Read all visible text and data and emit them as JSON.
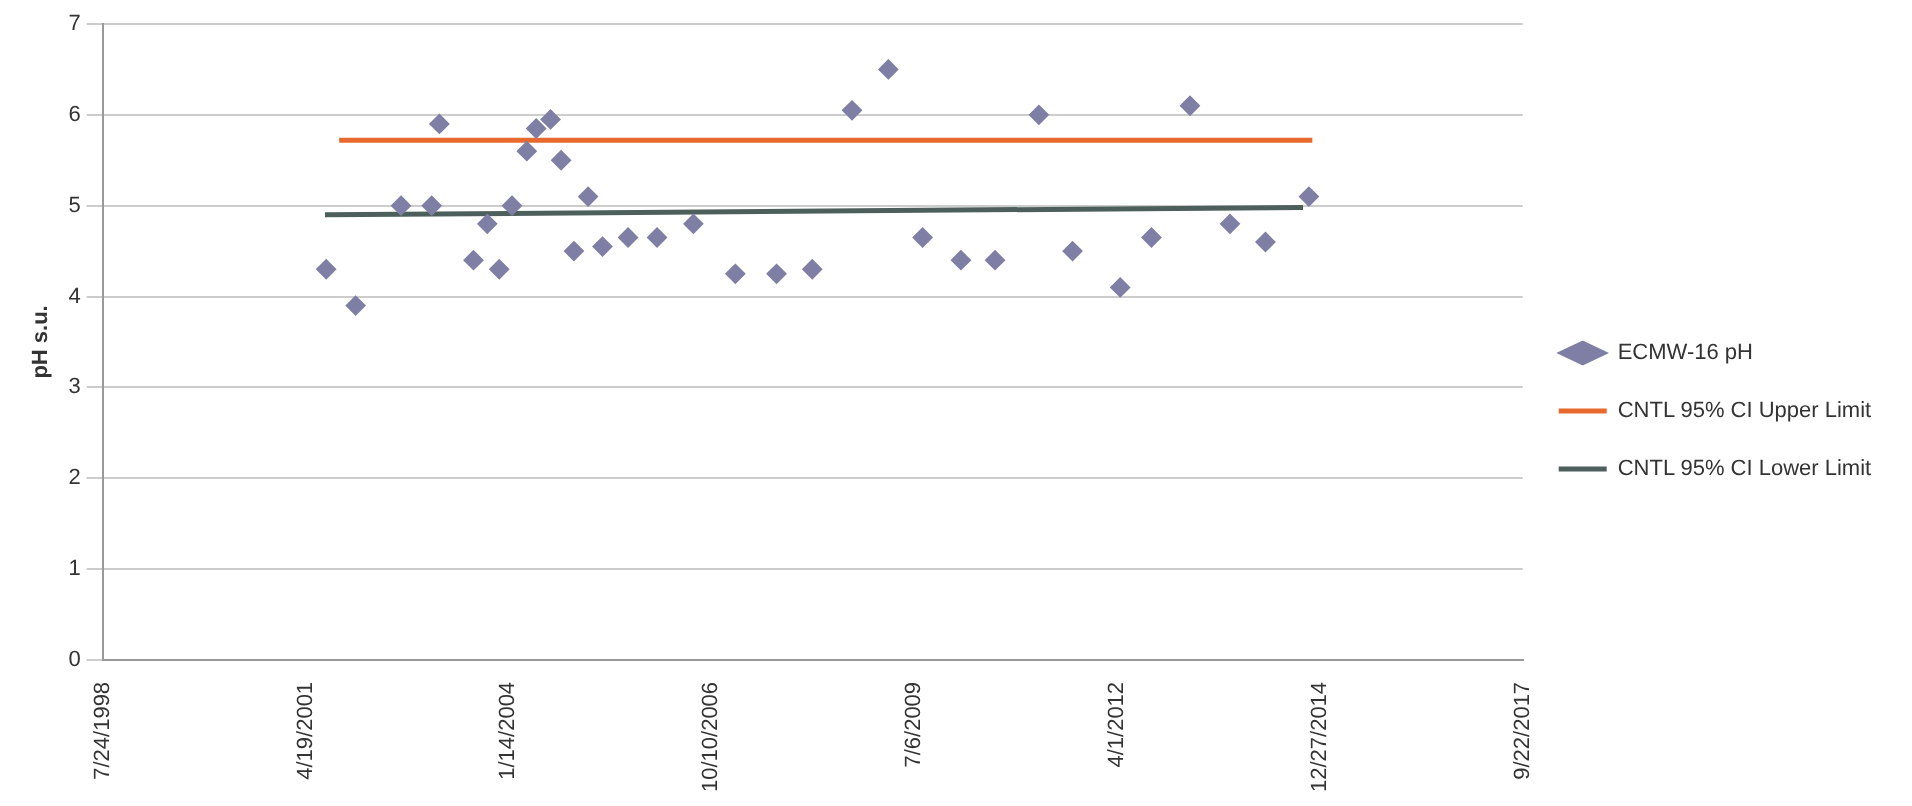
{
  "chart_data": {
    "type": "scatter",
    "ylabel": "pH s.u.",
    "xlim": [
      "1998-07-24",
      "2017-09-22"
    ],
    "xticks": [
      {
        "value": "1998-07-24",
        "label": "7/24/1998"
      },
      {
        "value": "2001-04-19",
        "label": "4/19/2001"
      },
      {
        "value": "2004-01-14",
        "label": "1/14/2004"
      },
      {
        "value": "2006-10-10",
        "label": "10/10/2006"
      },
      {
        "value": "2009-07-06",
        "label": "7/6/2009"
      },
      {
        "value": "2012-04-01",
        "label": "4/1/2012"
      },
      {
        "value": "2014-12-27",
        "label": "12/27/2014"
      },
      {
        "value": "2017-09-22",
        "label": "9/22/2017"
      }
    ],
    "ylim": [
      0,
      7
    ],
    "yticks": [
      0,
      1,
      2,
      3,
      4,
      5,
      6,
      7
    ],
    "grid": "y",
    "legend": "right",
    "series": [
      {
        "name": "ECMW-16 pH",
        "type": "scatter",
        "marker": "diamond",
        "color": "#7f7fa6",
        "x": [
          "2001-07-30",
          "2001-12-22",
          "2002-08-03",
          "2003-01-01",
          "2003-02-08",
          "2003-07-26",
          "2003-10-02",
          "2003-11-30",
          "2004-02-01",
          "2004-04-14",
          "2004-05-30",
          "2004-08-09",
          "2004-09-30",
          "2004-12-02",
          "2005-02-10",
          "2005-04-22",
          "2005-08-26",
          "2006-01-16",
          "2006-07-14",
          "2007-02-06",
          "2007-08-28",
          "2008-02-20",
          "2008-09-03",
          "2009-03-01",
          "2009-08-17",
          "2010-02-22",
          "2010-08-09",
          "2011-03-13",
          "2011-08-26",
          "2012-04-17",
          "2012-09-18",
          "2013-03-27",
          "2013-10-10",
          "2014-04-03",
          "2014-11-03"
        ],
        "values": [
          4.3,
          3.9,
          5.0,
          5.0,
          5.9,
          4.4,
          4.8,
          4.3,
          5.0,
          5.6,
          5.85,
          5.95,
          5.5,
          4.5,
          5.1,
          4.55,
          4.65,
          4.65,
          4.8,
          4.25,
          4.25,
          4.3,
          6.05,
          6.5,
          4.65,
          4.4,
          4.4,
          6.0,
          4.5,
          4.1,
          4.65,
          6.1,
          4.8,
          4.6,
          5.1
        ]
      },
      {
        "name": "CNTL 95% CI Upper Limit",
        "type": "line",
        "marker": "none",
        "line_style": "solid",
        "color": "#e8692e",
        "x": [
          "2001-10-02",
          "2014-11-20"
        ],
        "values": [
          5.72,
          5.72
        ]
      },
      {
        "name": "CNTL 95% CI Lower Limit",
        "type": "line",
        "marker": "none",
        "line_style": "solid",
        "color": "#4d5f5a",
        "x": [
          "2001-07-24",
          "2014-10-05"
        ],
        "values": [
          4.9,
          4.98
        ]
      }
    ]
  }
}
